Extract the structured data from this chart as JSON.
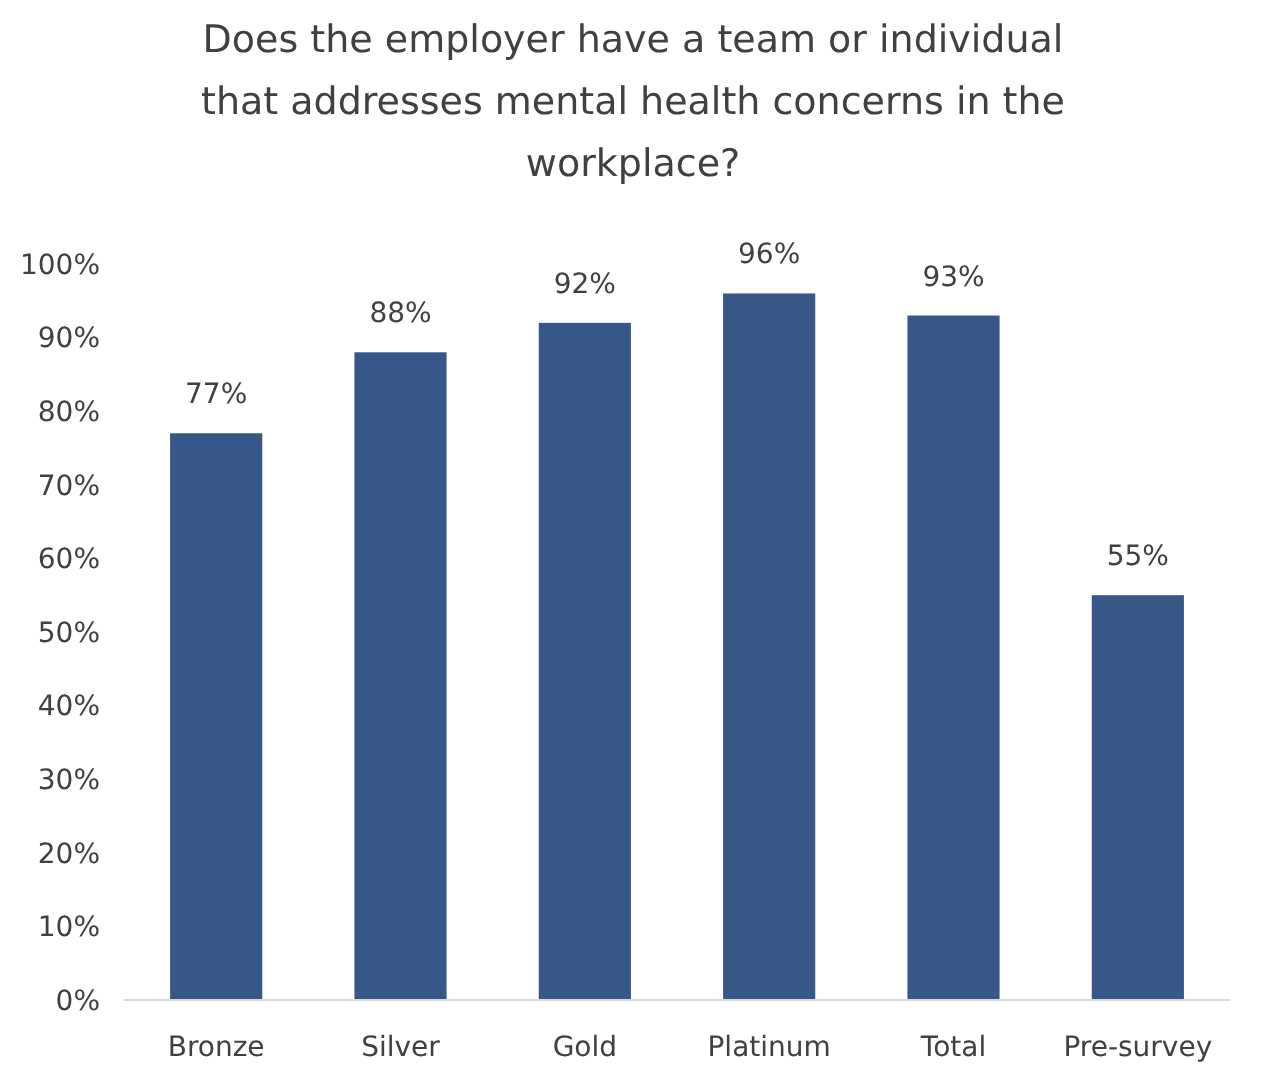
{
  "chart_data": {
    "type": "bar",
    "title": "Does the employer have a team or individual that addresses mental health concerns in the workplace?",
    "categories": [
      "Bronze",
      "Silver",
      "Gold",
      "Platinum",
      "Total",
      "Pre-survey"
    ],
    "values": [
      77,
      88,
      92,
      96,
      93,
      55
    ],
    "value_labels": [
      "77%",
      "88%",
      "92%",
      "96%",
      "93%",
      "55%"
    ],
    "color": "#365787",
    "ylim": [
      0,
      100
    ],
    "yticks": [
      {
        "value": 0,
        "label": "0%"
      },
      {
        "value": 10,
        "label": "10%"
      },
      {
        "value": 20,
        "label": "20%"
      },
      {
        "value": 30,
        "label": "30%"
      },
      {
        "value": 40,
        "label": "40%"
      },
      {
        "value": 50,
        "label": "50%"
      },
      {
        "value": 60,
        "label": "60%"
      },
      {
        "value": 70,
        "label": "70%"
      },
      {
        "value": 80,
        "label": "80%"
      },
      {
        "value": 90,
        "label": "90%"
      },
      {
        "value": 100,
        "label": "100%"
      }
    ],
    "grid": false
  }
}
